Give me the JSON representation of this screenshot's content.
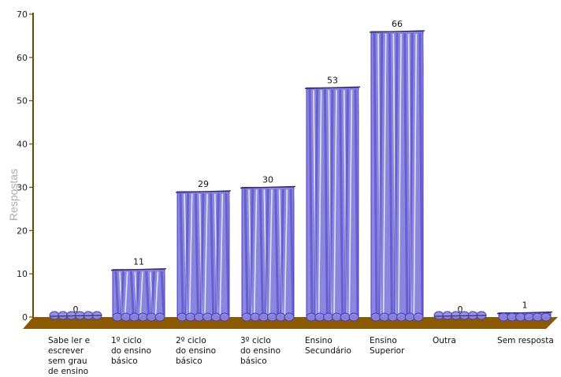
{
  "chart_data": {
    "type": "bar",
    "title": "",
    "xlabel": "",
    "ylabel": "Respostas",
    "ylim": [
      0,
      70
    ],
    "yticks": [
      0,
      10,
      20,
      30,
      40,
      50,
      60,
      70
    ],
    "grid": false,
    "categories": [
      [
        "Sabe ler e",
        "escrever",
        "sem grau",
        "de ensino"
      ],
      [
        "1º ciclo",
        "do ensino",
        "básico"
      ],
      [
        "2º ciclo",
        "do ensino",
        "básico"
      ],
      [
        "3º ciclo",
        "do ensino",
        "básico"
      ],
      [
        "Ensino",
        "Secundário"
      ],
      [
        "Ensino",
        "Superior"
      ],
      [
        "Outra"
      ],
      [
        "Sem resposta"
      ]
    ],
    "values": [
      0,
      11,
      29,
      30,
      53,
      66,
      0,
      1
    ],
    "colors": {
      "bar_fill": "#8b86de",
      "bar_dark": "#4a3fc2",
      "floor": "#8b5a00",
      "axis": "#6b4a00"
    }
  }
}
